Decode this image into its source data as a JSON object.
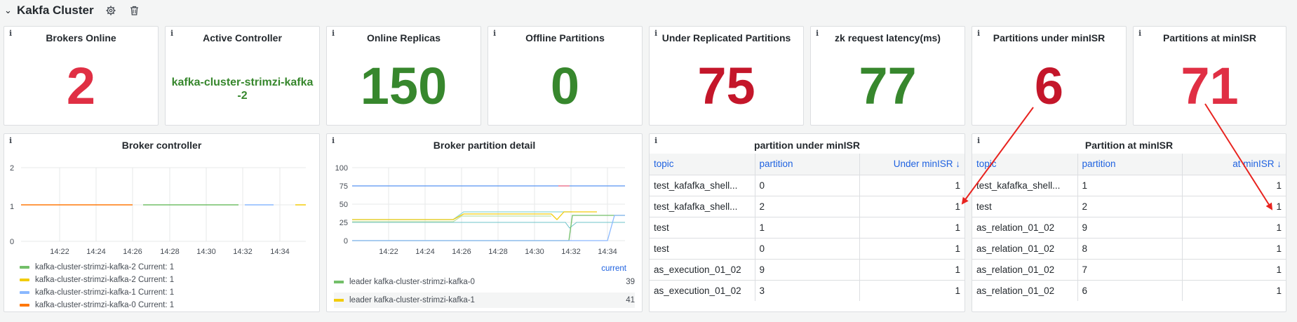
{
  "header": {
    "title": "Kakfa Cluster"
  },
  "colors": {
    "red": "#e02f44",
    "darkred": "#c4162a",
    "green": "#37872d"
  },
  "stats": [
    {
      "title": "Brokers Online",
      "value": "2"
    },
    {
      "title": "Active Controller",
      "value": "kafka-cluster-strimzi-kafka-2"
    },
    {
      "title": "Online Replicas",
      "value": "150"
    },
    {
      "title": "Offline Partitions",
      "value": "0"
    },
    {
      "title": "Under Replicated Partitions",
      "value": "75"
    },
    {
      "title": "zk request latency(ms)",
      "value": "77"
    },
    {
      "title": "Partitions under minISR",
      "value": "6"
    },
    {
      "title": "Partitions at minISR",
      "value": "71"
    }
  ],
  "broker_controller": {
    "title": "Broker controller",
    "y_ticks": [
      "2",
      "1",
      "0"
    ],
    "x_ticks": [
      "14:22",
      "14:24",
      "14:26",
      "14:28",
      "14:30",
      "14:32",
      "14:34"
    ],
    "legend": [
      {
        "label": "kafka-cluster-strimzi-kafka-2  Current: 1",
        "color": "#73bf69"
      },
      {
        "label": "kafka-cluster-strimzi-kafka-2  Current: 1",
        "color": "#f2cc0c"
      },
      {
        "label": "kafka-cluster-strimzi-kafka-1  Current: 1",
        "color": "#8ab8ff"
      },
      {
        "label": "kafka-cluster-strimzi-kafka-0  Current: 1",
        "color": "#ff780a"
      }
    ]
  },
  "partition_detail": {
    "title": "Broker partition detail",
    "y_ticks": [
      "100",
      "75",
      "50",
      "25",
      "0"
    ],
    "x_ticks": [
      "14:22",
      "14:24",
      "14:26",
      "14:28",
      "14:30",
      "14:32",
      "14:34"
    ],
    "current_label": "current",
    "legend": [
      {
        "label": "leader kafka-cluster-strimzi-kafka-0",
        "value": "39",
        "color": "#73bf69"
      },
      {
        "label": "leader kafka-cluster-strimzi-kafka-1",
        "value": "41",
        "color": "#f2cc0c"
      }
    ]
  },
  "under_minisr_table": {
    "title": "partition under minISR",
    "columns": [
      "topic",
      "partition",
      "Under minISR ↓"
    ],
    "rows": [
      [
        "test_kafafka_shell...",
        "0",
        "1"
      ],
      [
        "test_kafafka_shell...",
        "2",
        "1"
      ],
      [
        "test",
        "1",
        "1"
      ],
      [
        "test",
        "0",
        "1"
      ],
      [
        "as_execution_01_02",
        "9",
        "1"
      ],
      [
        "as_execution_01_02",
        "3",
        "1"
      ]
    ]
  },
  "at_minisr_table": {
    "title": "Partition at minISR",
    "columns": [
      "topic",
      "partition",
      "at minISR ↓"
    ],
    "rows": [
      [
        "test_kafafka_shell...",
        "1",
        "1"
      ],
      [
        "test",
        "2",
        "1"
      ],
      [
        "as_relation_01_02",
        "9",
        "1"
      ],
      [
        "as_relation_01_02",
        "8",
        "1"
      ],
      [
        "as_relation_01_02",
        "7",
        "1"
      ],
      [
        "as_relation_01_02",
        "6",
        "1"
      ]
    ]
  }
}
